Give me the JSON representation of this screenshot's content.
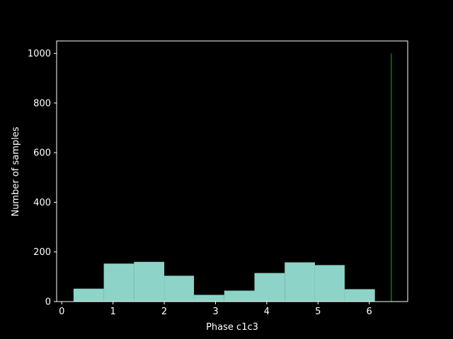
{
  "chart_data": {
    "type": "bar",
    "subtype": "histogram",
    "xlabel": "Phase c1c3",
    "ylabel": "Number of samples",
    "xlim": [
      -0.1,
      6.75
    ],
    "ylim": [
      0,
      1050
    ],
    "xticks": [
      0,
      1,
      2,
      3,
      4,
      5,
      6
    ],
    "yticks": [
      0,
      200,
      400,
      600,
      800,
      1000
    ],
    "bins": [
      {
        "x0": 0.23,
        "x1": 0.82,
        "value": 52
      },
      {
        "x0": 0.82,
        "x1": 1.41,
        "value": 153
      },
      {
        "x0": 1.41,
        "x1": 2.0,
        "value": 160
      },
      {
        "x0": 2.0,
        "x1": 2.58,
        "value": 104
      },
      {
        "x0": 2.58,
        "x1": 3.17,
        "value": 27
      },
      {
        "x0": 3.17,
        "x1": 3.76,
        "value": 44
      },
      {
        "x0": 3.76,
        "x1": 4.35,
        "value": 115
      },
      {
        "x0": 4.35,
        "x1": 4.94,
        "value": 158
      },
      {
        "x0": 4.94,
        "x1": 5.52,
        "value": 147
      },
      {
        "x0": 5.52,
        "x1": 6.11,
        "value": 50
      }
    ],
    "vline": {
      "x": 6.43,
      "y0": 0,
      "y1": 1000,
      "color": "#008000"
    },
    "bar_color": "#8dd3c7",
    "background": "#000000",
    "grid": false
  }
}
